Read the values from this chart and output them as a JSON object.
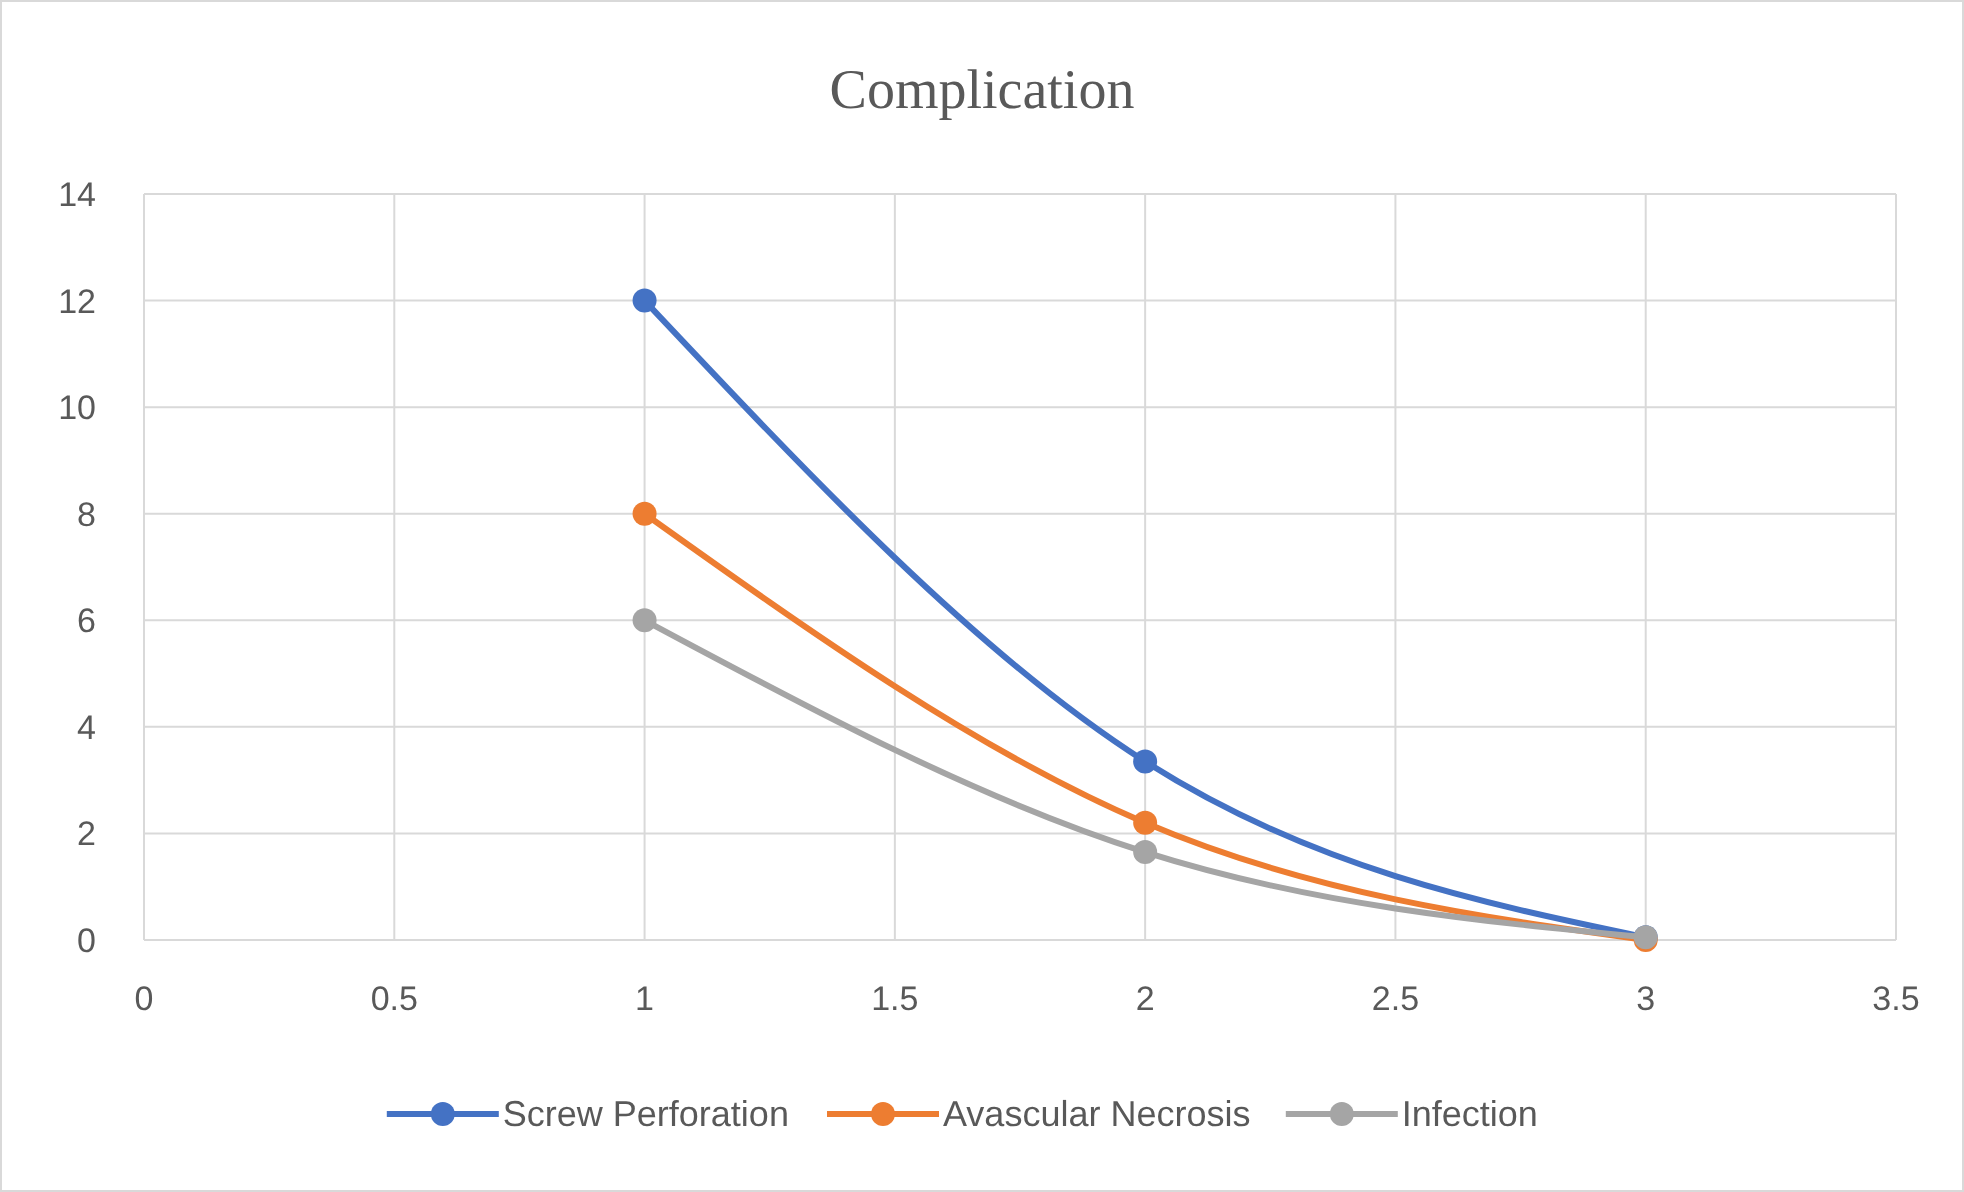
{
  "chart_data": {
    "type": "line",
    "title": "Complication",
    "x": [
      1,
      2,
      3
    ],
    "series": [
      {
        "name": "Screw Perforation",
        "color": "#4472c4",
        "values": [
          12,
          3.35,
          0.05
        ]
      },
      {
        "name": "Avascular Necrosis",
        "color": "#ed7d31",
        "values": [
          8,
          2.2,
          0
        ]
      },
      {
        "name": "Infection",
        "color": "#a5a5a5",
        "values": [
          6,
          1.65,
          0.05
        ]
      }
    ],
    "xlim": [
      0,
      3.5
    ],
    "xticks": [
      0,
      0.5,
      1,
      1.5,
      2,
      2.5,
      3,
      3.5
    ],
    "ylim": [
      0,
      14
    ],
    "yticks": [
      0,
      2,
      4,
      6,
      8,
      10,
      12,
      14
    ],
    "grid": true,
    "legend": "bottom",
    "marker": "circle",
    "line_style": "solid"
  }
}
